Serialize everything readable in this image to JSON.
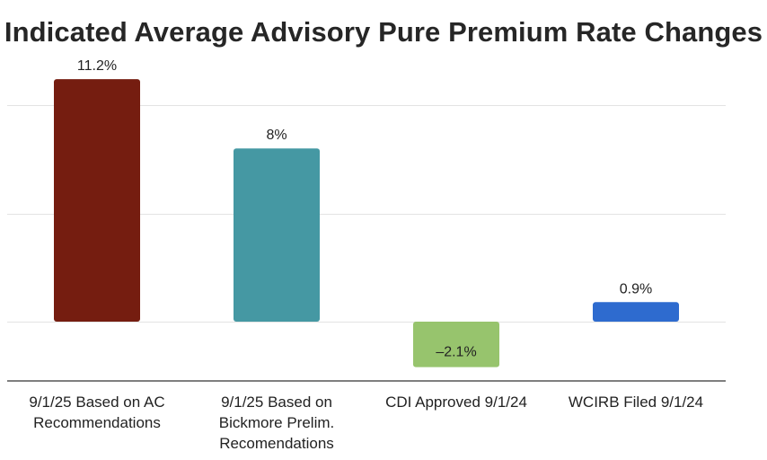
{
  "chart_data": {
    "type": "bar",
    "title": "Indicated Average Advisory Pure Premium Rate Changes",
    "xlabel": "",
    "ylabel": "",
    "ylim": [
      -5,
      12.5
    ],
    "grid": true,
    "legend": "none",
    "categories": [
      "9/1/25 Based on AC Recommendations",
      "9/1/25 Based on Bickmore Prelim. Recomendations",
      "CDI Approved 9/1/24",
      "WCIRB Filed 9/1/24"
    ],
    "category_lines": [
      [
        "9/1/25 Based on AC",
        "Recommendations"
      ],
      [
        "9/1/25 Based on",
        "Bickmore Prelim.",
        "Recomendations"
      ],
      [
        "CDI Approved 9/1/24"
      ],
      [
        "WCIRB Filed 9/1/24"
      ]
    ],
    "values": [
      11.2,
      8,
      -2.1,
      0.9
    ],
    "data_labels": [
      "11.2%",
      "8%",
      "–2.1%",
      "0.9%"
    ],
    "bar_colors": [
      "#751d10",
      "#4598a3",
      "#97c46d",
      "#2e6bcf"
    ]
  }
}
